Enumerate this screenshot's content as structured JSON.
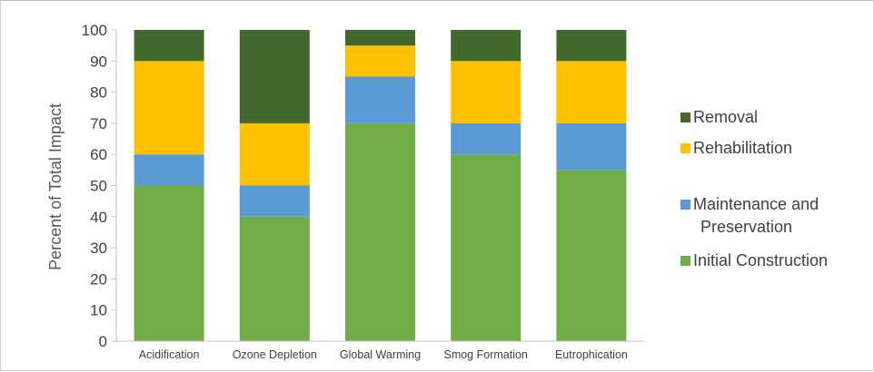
{
  "chart_data": {
    "type": "bar",
    "stacked": true,
    "categories": [
      "Acidification",
      "Ozone Depletion",
      "Global Warming",
      "Smog Formation",
      "Eutrophication"
    ],
    "series": [
      {
        "name": "Initial Construction",
        "color": "#70ad47",
        "values": [
          50,
          40,
          70,
          60,
          55
        ]
      },
      {
        "name": "Maintenance and Preservation",
        "color": "#5b9bd5",
        "values": [
          10,
          10,
          15,
          10,
          15
        ]
      },
      {
        "name": "Rehabilitation",
        "color": "#ffc000",
        "values": [
          30,
          20,
          10,
          20,
          20
        ]
      },
      {
        "name": "Removal",
        "color": "#43682b",
        "values": [
          10,
          30,
          5,
          10,
          10
        ]
      }
    ],
    "legend_order": [
      "Removal",
      "Rehabilitation",
      "Maintenance and Preservation",
      "Initial Construction"
    ],
    "legend_position": "right",
    "title": "",
    "xlabel": "",
    "ylabel": "Percent of Total Impact",
    "ylim": [
      0,
      100
    ],
    "yticks": [
      0,
      10,
      20,
      30,
      40,
      50,
      60,
      70,
      80,
      90,
      100
    ],
    "grid": false
  }
}
